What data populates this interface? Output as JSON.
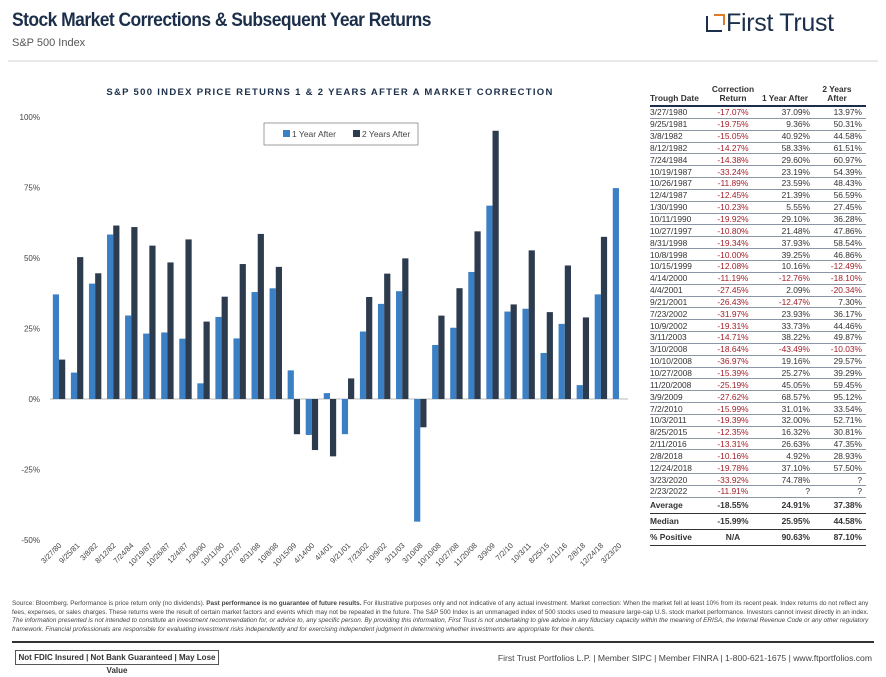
{
  "header": {
    "title": "Stock Market Corrections & Subsequent Year Returns",
    "subtitle": "S&P 500 Index",
    "logo_text": "First Trust"
  },
  "colors": {
    "one_year": "#3b7fc4",
    "two_years": "#2c3b4e",
    "title": "#1c2f4a",
    "negative": "#a3202a",
    "logo_accent": "#e07b2a"
  },
  "chart_data": {
    "type": "bar",
    "title": "S&P 500 INDEX PRICE RETURNS 1 & 2 YEARS AFTER A MARKET CORRECTION",
    "ylim": [
      -50,
      100
    ],
    "yticks": [
      "-50%",
      "-25%",
      "0%",
      "25%",
      "50%",
      "75%",
      "100%"
    ],
    "ytick_values": [
      -50,
      -25,
      0,
      25,
      50,
      75,
      100
    ],
    "legend_position": "top-center",
    "categories": [
      "3/27/80",
      "9/25/81",
      "3/8/82",
      "8/12/82",
      "7/24/84",
      "10/19/87",
      "10/26/87",
      "12/4/87",
      "1/30/90",
      "10/11/90",
      "10/27/97",
      "8/31/98",
      "10/8/98",
      "10/15/99",
      "4/14/00",
      "4/4/01",
      "9/21/01",
      "7/23/02",
      "10/9/02",
      "3/11/03",
      "3/10/08",
      "10/10/08",
      "10/27/08",
      "11/20/08",
      "3/9/09",
      "7/2/10",
      "10/3/11",
      "8/25/15",
      "2/11/16",
      "2/8/18",
      "12/24/18",
      "3/23/20"
    ],
    "series": [
      {
        "name": "1 Year After",
        "values": [
          37.09,
          9.36,
          40.92,
          58.33,
          29.6,
          23.19,
          23.59,
          21.39,
          5.55,
          29.1,
          21.48,
          37.93,
          39.25,
          10.16,
          -12.76,
          2.09,
          -12.47,
          23.93,
          33.73,
          38.22,
          -43.49,
          19.16,
          25.27,
          45.05,
          68.57,
          31.01,
          32.0,
          16.32,
          26.63,
          4.92,
          37.1,
          74.78
        ]
      },
      {
        "name": "2 Years After",
        "values": [
          13.97,
          50.31,
          44.58,
          61.51,
          60.97,
          54.39,
          48.43,
          56.59,
          27.45,
          36.28,
          47.86,
          58.54,
          46.86,
          -12.49,
          -18.1,
          -20.34,
          7.3,
          36.17,
          44.46,
          49.87,
          -10.03,
          29.57,
          39.29,
          59.45,
          95.12,
          33.54,
          52.71,
          30.81,
          47.35,
          28.93,
          57.5,
          null
        ]
      }
    ]
  },
  "table": {
    "headers": [
      "Trough Date",
      "Correction Return",
      "1 Year After",
      "2 Years After"
    ],
    "rows": [
      [
        "3/27/1980",
        "-17.07%",
        "37.09%",
        "13.97%"
      ],
      [
        "9/25/1981",
        "-19.75%",
        "9.36%",
        "50.31%"
      ],
      [
        "3/8/1982",
        "-15.05%",
        "40.92%",
        "44.58%"
      ],
      [
        "8/12/1982",
        "-14.27%",
        "58.33%",
        "61.51%"
      ],
      [
        "7/24/1984",
        "-14.38%",
        "29.60%",
        "60.97%"
      ],
      [
        "10/19/1987",
        "-33.24%",
        "23.19%",
        "54.39%"
      ],
      [
        "10/26/1987",
        "-11.89%",
        "23.59%",
        "48.43%"
      ],
      [
        "12/4/1987",
        "-12.45%",
        "21.39%",
        "56.59%"
      ],
      [
        "1/30/1990",
        "-10.23%",
        "5.55%",
        "27.45%"
      ],
      [
        "10/11/1990",
        "-19.92%",
        "29.10%",
        "36.28%"
      ],
      [
        "10/27/1997",
        "-10.80%",
        "21.48%",
        "47.86%"
      ],
      [
        "8/31/1998",
        "-19.34%",
        "37.93%",
        "58.54%"
      ],
      [
        "10/8/1998",
        "-10.00%",
        "39.25%",
        "46.86%"
      ],
      [
        "10/15/1999",
        "-12.08%",
        "10.16%",
        "-12.49%"
      ],
      [
        "4/14/2000",
        "-11.19%",
        "-12.76%",
        "-18.10%"
      ],
      [
        "4/4/2001",
        "-27.45%",
        "2.09%",
        "-20.34%"
      ],
      [
        "9/21/2001",
        "-26.43%",
        "-12.47%",
        "7.30%"
      ],
      [
        "7/23/2002",
        "-31.97%",
        "23.93%",
        "36.17%"
      ],
      [
        "10/9/2002",
        "-19.31%",
        "33.73%",
        "44.46%"
      ],
      [
        "3/11/2003",
        "-14.71%",
        "38.22%",
        "49.87%"
      ],
      [
        "3/10/2008",
        "-18.64%",
        "-43.49%",
        "-10.03%"
      ],
      [
        "10/10/2008",
        "-36.97%",
        "19.16%",
        "29.57%"
      ],
      [
        "10/27/2008",
        "-15.39%",
        "25.27%",
        "39.29%"
      ],
      [
        "11/20/2008",
        "-25.19%",
        "45.05%",
        "59.45%"
      ],
      [
        "3/9/2009",
        "-27.62%",
        "68.57%",
        "95.12%"
      ],
      [
        "7/2/2010",
        "-15.99%",
        "31.01%",
        "33.54%"
      ],
      [
        "10/3/2011",
        "-19.39%",
        "32.00%",
        "52.71%"
      ],
      [
        "8/25/2015",
        "-12.35%",
        "16.32%",
        "30.81%"
      ],
      [
        "2/11/2016",
        "-13.31%",
        "26.63%",
        "47.35%"
      ],
      [
        "2/8/2018",
        "-10.16%",
        "4.92%",
        "28.93%"
      ],
      [
        "12/24/2018",
        "-19.78%",
        "37.10%",
        "57.50%"
      ],
      [
        "3/23/2020",
        "-33.92%",
        "74.78%",
        "?"
      ],
      [
        "2/23/2022",
        "-11.91%",
        "?",
        "?"
      ]
    ],
    "summary": [
      [
        "Average",
        "-18.55%",
        "24.91%",
        "37.38%"
      ],
      [
        "Median",
        "-15.99%",
        "25.95%",
        "44.58%"
      ],
      [
        "% Positive",
        "N/A",
        "90.63%",
        "87.10%"
      ]
    ]
  },
  "footer": {
    "source_pre": "Source: Bloomberg. Performance is price return only (no dividends). ",
    "source_bold": "Past performance is no guarantee of future results.",
    "source_post": " For illustrative purposes only and not indicative of any actual investment. Market correction: When the market fell at least 10% from its recent peak. Index returns do not reflect any fees, expenses, or sales charges. These returns were the result of certain market factors and events which may not be repeated in the future. The S&P 500 Index is an unmanaged index of 500 stocks used to measure large-cap U.S. stock market performance. Investors cannot invest directly in an index.",
    "disclaimer": "The information presented is not intended to constitute an investment recommendation for, or advice to, any specific person. By providing this information, First Trust is not undertaking to give advice in any fiduciary capacity within the meaning of ERISA, the Internal Revenue Code or any other regulatory framework. Financial professionals are responsible for evaluating investment risks independently and for exercising independent judgment in determining whether investments are appropriate for their clients.",
    "badge": "Not FDIC Insured | Not Bank Guaranteed | May Lose Value",
    "contact": "First Trust Portfolios L.P. | Member SIPC | Member FINRA | 1-800-621-1675 | www.ftportfolios.com"
  }
}
